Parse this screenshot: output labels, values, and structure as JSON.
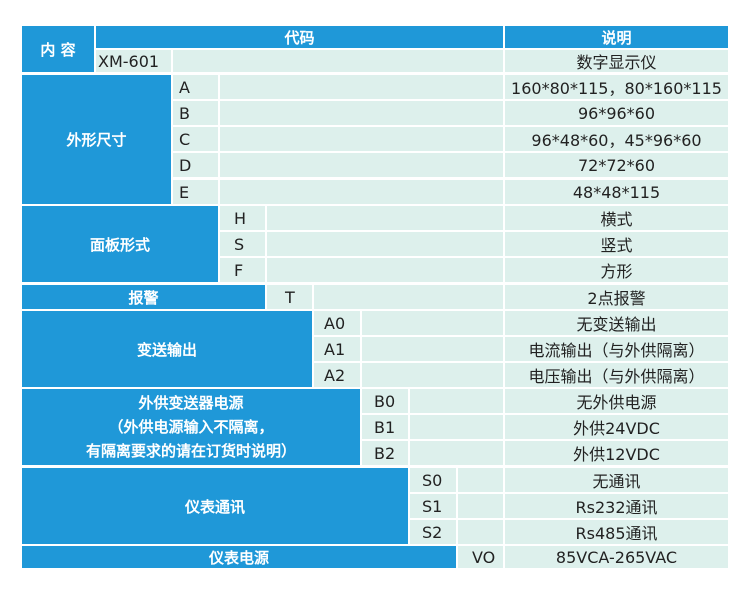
{
  "header": {
    "content": "内 容",
    "code": "代码",
    "description": "说明"
  },
  "model": {
    "code": "XM-601",
    "description": "数字显示仪"
  },
  "sections": [
    {
      "title": "外形尺寸",
      "rows": [
        {
          "code": "A",
          "description": "160*80*115，80*160*115"
        },
        {
          "code": "B",
          "description": "96*96*60"
        },
        {
          "code": "C",
          "description": "96*48*60，45*96*60"
        },
        {
          "code": "D",
          "description": "72*72*60"
        },
        {
          "code": "E",
          "description": "48*48*115"
        }
      ]
    },
    {
      "title": "面板形式",
      "rows": [
        {
          "code": "H",
          "description": "横式"
        },
        {
          "code": "S",
          "description": "竖式"
        },
        {
          "code": "F",
          "description": "方形"
        }
      ]
    },
    {
      "title": "报警",
      "rows": [
        {
          "code": "T",
          "description": "2点报警"
        }
      ]
    },
    {
      "title": "变送输出",
      "rows": [
        {
          "code": "A0",
          "description": "无变送输出"
        },
        {
          "code": "A1",
          "description": "电流输出（与外供隔离）"
        },
        {
          "code": "A2",
          "description": "电压输出（与外供隔离）"
        }
      ]
    },
    {
      "title_lines": [
        "外供变送器电源",
        "（外供电源输入不隔离，",
        "有隔离要求的请在订货时说明）"
      ],
      "rows": [
        {
          "code": "B0",
          "description": "无外供电源"
        },
        {
          "code": "B1",
          "description": "外供24VDC"
        },
        {
          "code": "B2",
          "description": "外供12VDC"
        }
      ]
    },
    {
      "title": "仪表通讯",
      "rows": [
        {
          "code": "S0",
          "description": "无通讯"
        },
        {
          "code": "S1",
          "description": "Rs232通讯"
        },
        {
          "code": "S2",
          "description": "Rs485通讯"
        }
      ]
    },
    {
      "title": "仪表电源",
      "rows": [
        {
          "code": "VO",
          "description": "85VCA-265VAC"
        }
      ]
    }
  ]
}
